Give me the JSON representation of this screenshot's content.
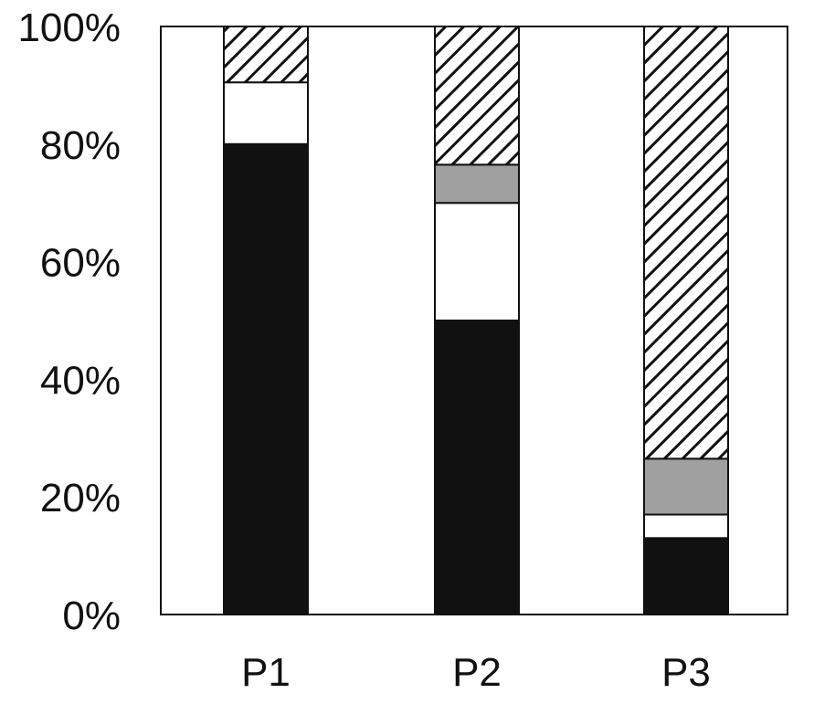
{
  "chart_data": {
    "type": "bar",
    "stacked": true,
    "categories": [
      "P1",
      "P2",
      "P3"
    ],
    "series": [
      {
        "fill": "#111111",
        "values": [
          80,
          50,
          13
        ]
      },
      {
        "fill": "#ffffff",
        "values": [
          10.5,
          20,
          4
        ]
      },
      {
        "fill": "#a0a0a0",
        "values": [
          0,
          6.5,
          9.5
        ]
      },
      {
        "fill": "hatch",
        "values": [
          9.5,
          23.5,
          73.5
        ]
      }
    ],
    "ylim": [
      0,
      100
    ],
    "yticks": [
      0,
      20,
      40,
      60,
      80,
      100
    ],
    "ytick_labels": [
      "0%",
      "20%",
      "40%",
      "60%",
      "80%",
      "100%"
    ],
    "legend": "none",
    "grid": false
  }
}
